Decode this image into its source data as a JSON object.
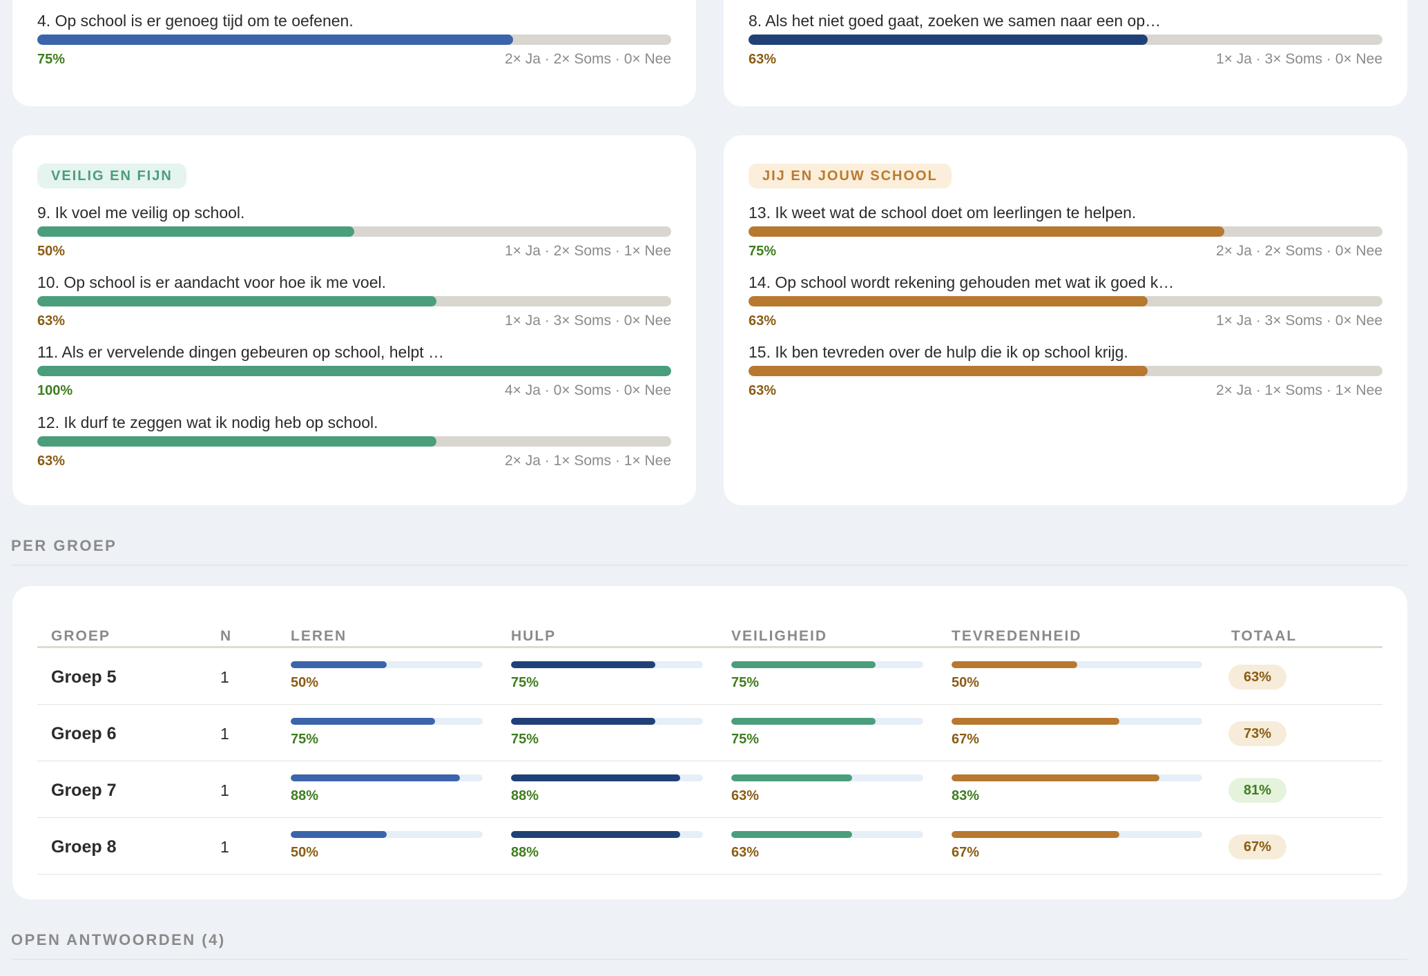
{
  "colors": {
    "blue": "#3b64aa",
    "navy": "#1f4178",
    "green": "#4a9e7c",
    "orange": "#b7782f",
    "track": "#d8d6cf"
  },
  "top_cards": [
    {
      "text": "4. Op school is er genoeg tijd om te oefenen.",
      "pct_label": "75%",
      "value": 0.75,
      "counts": "2× Ja · 2× Soms · 0× Nee",
      "tone": "green"
    },
    {
      "text": "8. Als het niet goed gaat, zoeken we samen naar een op…",
      "pct_label": "63%",
      "value": 0.63,
      "counts": "1× Ja · 3× Soms · 0× Nee",
      "tone": "brown"
    }
  ],
  "veilig": {
    "category": "VEILIG EN FIJN",
    "questions": [
      {
        "text": "9. Ik voel me veilig op school.",
        "pct_label": "50%",
        "value": 0.5,
        "counts": "1× Ja · 2× Soms · 1× Nee",
        "tone": "brown"
      },
      {
        "text": "10. Op school is er aandacht voor hoe ik me voel.",
        "pct_label": "63%",
        "value": 0.63,
        "counts": "1× Ja · 3× Soms · 0× Nee",
        "tone": "brown"
      },
      {
        "text": "11. Als er vervelende dingen gebeuren op school, helpt …",
        "pct_label": "100%",
        "value": 1.0,
        "counts": "4× Ja · 0× Soms · 0× Nee",
        "tone": "green"
      },
      {
        "text": "12. Ik durf te zeggen wat ik nodig heb op school.",
        "pct_label": "63%",
        "value": 0.63,
        "counts": "2× Ja · 1× Soms · 1× Nee",
        "tone": "brown"
      }
    ]
  },
  "jij": {
    "category": "JIJ EN JOUW SCHOOL",
    "questions": [
      {
        "text": "13. Ik weet wat de school doet om leerlingen te helpen.",
        "pct_label": "75%",
        "value": 0.75,
        "counts": "2× Ja · 2× Soms · 0× Nee",
        "tone": "green"
      },
      {
        "text": "14. Op school wordt rekening gehouden met wat ik goed k…",
        "pct_label": "63%",
        "value": 0.63,
        "counts": "1× Ja · 3× Soms · 0× Nee",
        "tone": "brown"
      },
      {
        "text": "15. Ik ben tevreden over de hulp die ik op school krijg.",
        "pct_label": "63%",
        "value": 0.63,
        "counts": "2× Ja · 1× Soms · 1× Nee",
        "tone": "brown"
      }
    ]
  },
  "per_groep": {
    "heading": "PER GROEP",
    "columns": {
      "groep": "GROEP",
      "n": "N",
      "leren": "LEREN",
      "hulp": "HULP",
      "veiligheid": "VEILIGHEID",
      "tevredenheid": "TEVREDENHEID",
      "totaal": "TOTAAL"
    },
    "rows": [
      {
        "groep": "Groep 5",
        "n": "1",
        "leren": {
          "label": "50%",
          "value": 0.5
        },
        "hulp": {
          "label": "75%",
          "value": 0.75
        },
        "veiligheid": {
          "label": "75%",
          "value": 0.75
        },
        "tevredenheid": {
          "label": "50%",
          "value": 0.5
        },
        "totaal": "63%",
        "totaal_tone": "beige"
      },
      {
        "groep": "Groep 6",
        "n": "1",
        "leren": {
          "label": "75%",
          "value": 0.75
        },
        "hulp": {
          "label": "75%",
          "value": 0.75
        },
        "veiligheid": {
          "label": "75%",
          "value": 0.75
        },
        "tevredenheid": {
          "label": "67%",
          "value": 0.67
        },
        "totaal": "73%",
        "totaal_tone": "beige"
      },
      {
        "groep": "Groep 7",
        "n": "1",
        "leren": {
          "label": "88%",
          "value": 0.88
        },
        "hulp": {
          "label": "88%",
          "value": 0.88
        },
        "veiligheid": {
          "label": "63%",
          "value": 0.63
        },
        "tevredenheid": {
          "label": "83%",
          "value": 0.83
        },
        "totaal": "81%",
        "totaal_tone": "green"
      },
      {
        "groep": "Groep 8",
        "n": "1",
        "leren": {
          "label": "50%",
          "value": 0.5
        },
        "hulp": {
          "label": "88%",
          "value": 0.88
        },
        "veiligheid": {
          "label": "63%",
          "value": 0.63
        },
        "tevredenheid": {
          "label": "67%",
          "value": 0.67
        },
        "totaal": "67%",
        "totaal_tone": "beige"
      }
    ]
  },
  "open_antwoorden": {
    "heading": "OPEN ANTWOORDEN (4)"
  }
}
